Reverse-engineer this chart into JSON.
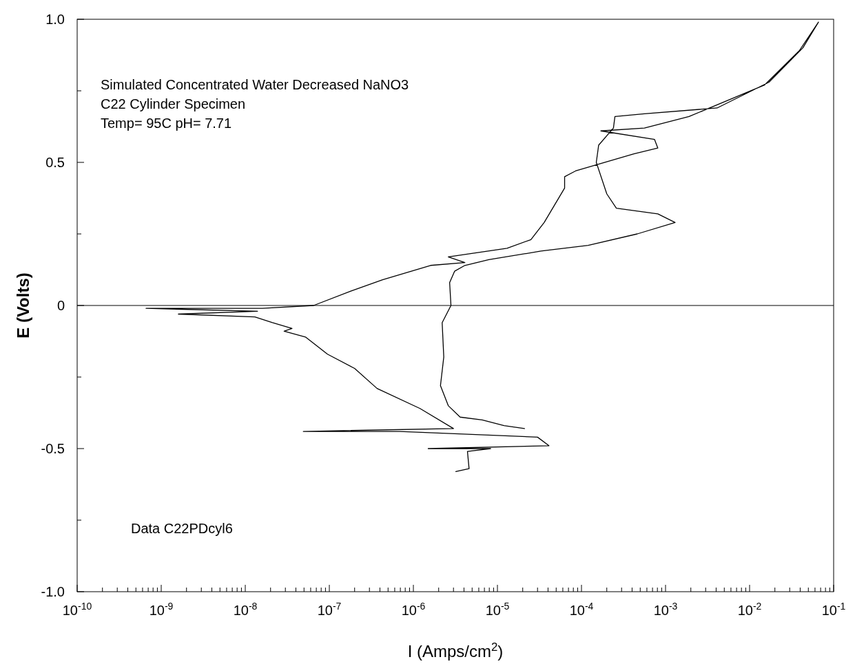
{
  "chart_data": {
    "type": "line",
    "xlabel": "I (Amps/cm$^{2}$)",
    "ylabel": "E (Volts)",
    "annotations": [
      "Simulated Concentrated Water Decreased NaNO3",
      "C22 Cylinder Specimen",
      "Temp= 95C  pH= 7.71",
      "Data C22PDcyl6"
    ],
    "log": "x",
    "xlim": [
      1e-10,
      0.1
    ],
    "ylim": [
      -1,
      1
    ],
    "xticks": [
      {
        "value": 1e-10,
        "label": "10$^{-10}$"
      },
      {
        "value": 2e-10,
        "label": null
      },
      {
        "value": 3e-10,
        "label": null
      },
      {
        "value": 4e-10,
        "label": null
      },
      {
        "value": 5e-10,
        "label": null
      },
      {
        "value": 6e-10,
        "label": null
      },
      {
        "value": 7e-10,
        "label": null
      },
      {
        "value": 8e-10,
        "label": null
      },
      {
        "value": 9e-10,
        "label": null
      },
      {
        "value": 1e-09,
        "label": "10$^{-9}$"
      },
      {
        "value": 2e-09,
        "label": null
      },
      {
        "value": 3e-09,
        "label": null
      },
      {
        "value": 4e-09,
        "label": null
      },
      {
        "value": 5e-09,
        "label": null
      },
      {
        "value": 6e-09,
        "label": null
      },
      {
        "value": 7e-09,
        "label": null
      },
      {
        "value": 8e-09,
        "label": null
      },
      {
        "value": 9e-09,
        "label": null
      },
      {
        "value": 1e-08,
        "label": "10$^{-8}$"
      },
      {
        "value": 2e-08,
        "label": null
      },
      {
        "value": 3e-08,
        "label": null
      },
      {
        "value": 4e-08,
        "label": null
      },
      {
        "value": 5e-08,
        "label": null
      },
      {
        "value": 6e-08,
        "label": null
      },
      {
        "value": 7e-08,
        "label": null
      },
      {
        "value": 8e-08,
        "label": null
      },
      {
        "value": 9e-08,
        "label": null
      },
      {
        "value": 1e-07,
        "label": "10$^{-7}$"
      },
      {
        "value": 2e-07,
        "label": null
      },
      {
        "value": 3e-07,
        "label": null
      },
      {
        "value": 4e-07,
        "label": null
      },
      {
        "value": 5e-07,
        "label": null
      },
      {
        "value": 6e-07,
        "label": null
      },
      {
        "value": 7e-07,
        "label": null
      },
      {
        "value": 8e-07,
        "label": null
      },
      {
        "value": 9e-07,
        "label": null
      },
      {
        "value": 1e-06,
        "label": "10$^{-6}$"
      },
      {
        "value": 2e-06,
        "label": null
      },
      {
        "value": 3e-06,
        "label": null
      },
      {
        "value": 4e-06,
        "label": null
      },
      {
        "value": 5e-06,
        "label": null
      },
      {
        "value": 6e-06,
        "label": null
      },
      {
        "value": 7e-06,
        "label": null
      },
      {
        "value": 8e-06,
        "label": null
      },
      {
        "value": 9e-06,
        "label": null
      },
      {
        "value": 1e-05,
        "label": "10$^{-5}$"
      },
      {
        "value": 2e-05,
        "label": null
      },
      {
        "value": 3e-05,
        "label": null
      },
      {
        "value": 4e-05,
        "label": null
      },
      {
        "value": 5e-05,
        "label": null
      },
      {
        "value": 6e-05,
        "label": null
      },
      {
        "value": 7e-05,
        "label": null
      },
      {
        "value": 8e-05,
        "label": null
      },
      {
        "value": 9e-05,
        "label": null
      },
      {
        "value": 0.0001,
        "label": "10$^{-4}$"
      },
      {
        "value": 0.0002,
        "label": null
      },
      {
        "value": 0.0003,
        "label": null
      },
      {
        "value": 0.0004,
        "label": null
      },
      {
        "value": 0.0005,
        "label": null
      },
      {
        "value": 0.0006,
        "label": null
      },
      {
        "value": 0.0007,
        "label": null
      },
      {
        "value": 0.0008,
        "label": null
      },
      {
        "value": 0.0009,
        "label": null
      },
      {
        "value": 0.001,
        "label": "10$^{-3}$"
      },
      {
        "value": 0.002,
        "label": null
      },
      {
        "value": 0.003,
        "label": null
      },
      {
        "value": 0.004,
        "label": null
      },
      {
        "value": 0.005,
        "label": null
      },
      {
        "value": 0.006,
        "label": null
      },
      {
        "value": 0.007,
        "label": null
      },
      {
        "value": 0.008,
        "label": null
      },
      {
        "value": 0.009,
        "label": null
      },
      {
        "value": 0.01,
        "label": "10$^{-2}$"
      },
      {
        "value": 0.02,
        "label": null
      },
      {
        "value": 0.03,
        "label": null
      },
      {
        "value": 0.04,
        "label": null
      },
      {
        "value": 0.05,
        "label": null
      },
      {
        "value": 0.06,
        "label": null
      },
      {
        "value": 0.07,
        "label": null
      },
      {
        "value": 0.08,
        "label": null
      },
      {
        "value": 0.09,
        "label": null
      },
      {
        "value": 0.1,
        "label": "10$^{-1}$"
      }
    ],
    "yticks": [
      {
        "value": -1,
        "label": "-1.0"
      },
      {
        "value": -0.75,
        "label": null
      },
      {
        "value": -0.5,
        "label": "-0.5"
      },
      {
        "value": -0.25,
        "label": null
      },
      0,
      {
        "value": 0.25,
        "label": null
      },
      {
        "value": 0.5,
        "label": "0.5"
      },
      {
        "value": 0.75,
        "label": null
      },
      {
        "value": 1,
        "label": "1.0"
      }
    ],
    "ref_lines": [
      {
        "axis": "y",
        "value": 0,
        "color": "#000000"
      }
    ],
    "marker": "none",
    "line_style": "solid",
    "series": [
      {
        "color": "#000000",
        "x": [
          2.1e-05,
          1.2e-05,
          6.6e-06,
          3.6e-06,
          2.6e-06,
          2.1e-06,
          2.3e-06,
          2.2e-06,
          2.8e-06,
          2.7e-06,
          3.1e-06,
          4.1e-06,
          7.9e-06,
          3.3e-05,
          0.00012,
          0.00046,
          0.0013,
          0.00081,
          0.00026,
          0.0002,
          0.00015,
          0.00016,
          0.00024,
          0.00025,
          0.00056,
          0.0041,
          0.017,
          0.043,
          0.066,
          0.039,
          0.015,
          0.0019,
          0.00056,
          0.00017,
          0.00074,
          0.00081,
          0.00042,
          8.5e-05,
          6.3e-05,
          6.3e-05,
          3.6e-05,
          2.5e-05,
          1.3e-05,
          2.6e-06,
          4.1e-06,
          1.6e-06,
          4.3e-07,
          1.8e-07,
          6.5e-08,
          1.6e-08,
          6.6e-10,
          1.4e-08,
          1.6e-09,
          1.3e-08,
          2.1e-08,
          3.6e-08,
          2.9e-08,
          5.2e-08,
          9.5e-08,
          2e-07,
          3.7e-07,
          1.2e-06,
          3e-06,
          4.9e-08,
          6.9e-07,
          3e-05,
          4.1e-05,
          1.5e-06,
          8.3e-06,
          4.4e-06,
          4.6e-06,
          3.2e-06
        ],
        "values": [
          -0.43,
          -0.42,
          -0.4,
          -0.39,
          -0.35,
          -0.28,
          -0.18,
          -0.06,
          0,
          0.08,
          0.12,
          0.14,
          0.16,
          0.19,
          0.21,
          0.25,
          0.29,
          0.32,
          0.34,
          0.39,
          0.5,
          0.56,
          0.62,
          0.66,
          0.67,
          0.69,
          0.78,
          0.9,
          0.99,
          0.89,
          0.77,
          0.66,
          0.62,
          0.61,
          0.58,
          0.55,
          0.53,
          0.47,
          0.45,
          0.41,
          0.29,
          0.23,
          0.2,
          0.17,
          0.15,
          0.14,
          0.09,
          0.05,
          0,
          -0.01,
          -0.01,
          -0.02,
          -0.03,
          -0.04,
          -0.06,
          -0.08,
          -0.09,
          -0.11,
          -0.17,
          -0.22,
          -0.29,
          -0.36,
          -0.43,
          -0.44,
          -0.44,
          -0.46,
          -0.49,
          -0.5,
          -0.5,
          -0.51,
          -0.57,
          -0.58
        ]
      }
    ]
  }
}
